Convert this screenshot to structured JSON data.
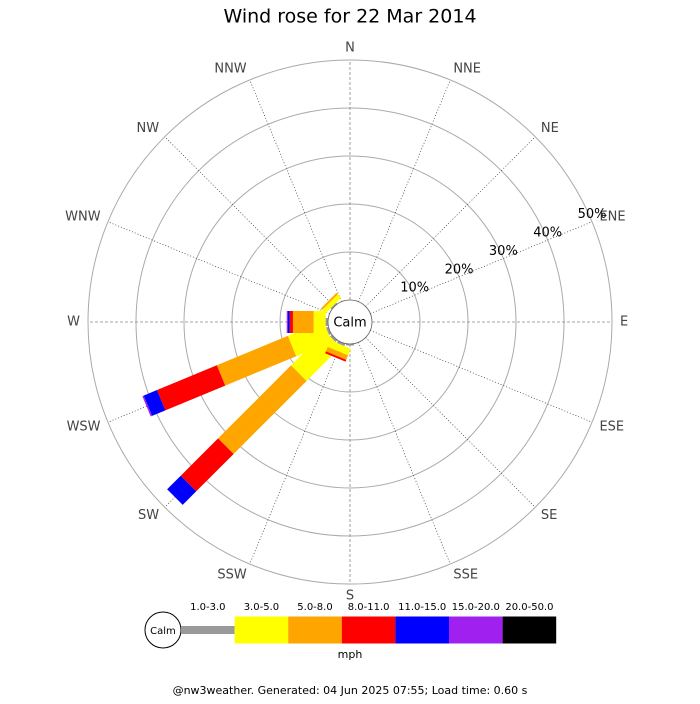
{
  "chart_data": {
    "type": "windrose",
    "title": "Wind rose for 22 Mar 2014",
    "directions": [
      "N",
      "NNE",
      "NE",
      "ENE",
      "E",
      "ESE",
      "SE",
      "SSE",
      "S",
      "SSW",
      "SW",
      "WSW",
      "W",
      "WNW",
      "NW",
      "NNW"
    ],
    "center_label": "Calm",
    "rlim": [
      0,
      50
    ],
    "rticks": [
      {
        "value": 10,
        "label": "10%"
      },
      {
        "value": 20,
        "label": "20%"
      },
      {
        "value": 30,
        "label": "30%"
      },
      {
        "value": 40,
        "label": "40%"
      },
      {
        "value": 50,
        "label": "50%"
      }
    ],
    "series": [
      {
        "name": "1.0-3.0",
        "color": "#999999",
        "values": [
          0,
          0,
          0,
          0,
          0,
          0,
          0,
          0,
          0.3,
          0.5,
          0.5,
          0.5,
          0.5,
          0,
          0.3,
          0
        ]
      },
      {
        "name": "3.0-5.0",
        "color": "#ffff00",
        "values": [
          0,
          0,
          0,
          0,
          0,
          0,
          0,
          0,
          0,
          1.5,
          10,
          8,
          2.5,
          0,
          1,
          0
        ]
      },
      {
        "name": "5.0-8.0",
        "color": "#ffa500",
        "values": [
          0,
          0,
          0,
          0,
          0,
          0,
          0,
          0,
          0,
          1,
          21.5,
          16,
          4.3,
          0,
          0.4,
          0
        ]
      },
      {
        "name": "8.0-11.0",
        "color": "#ff0000",
        "values": [
          0,
          0,
          0,
          0,
          0,
          0,
          0,
          0,
          0,
          0.4,
          11,
          13.5,
          0.7,
          0,
          0,
          0
        ]
      },
      {
        "name": "11.0-15.0",
        "color": "#0000ff",
        "values": [
          0,
          0,
          0,
          0,
          0,
          0,
          0,
          0,
          0,
          0,
          4,
          3,
          0.4,
          0,
          0,
          0
        ]
      },
      {
        "name": "15.0-20.0",
        "color": "#a020f0",
        "values": [
          0,
          0,
          0,
          0,
          0,
          0,
          0,
          0,
          0,
          0,
          0,
          0.3,
          0.2,
          0,
          0,
          0
        ]
      },
      {
        "name": "20.0-50.0",
        "color": "#000000",
        "values": [
          0,
          0,
          0,
          0,
          0,
          0,
          0,
          0,
          0,
          0,
          0,
          0,
          0,
          0,
          0,
          0
        ]
      }
    ],
    "legend_unit": "mph",
    "footer": "@nw3weather. Generated: 04 Jun 2025 07:55; Load time: 0.60 s"
  }
}
